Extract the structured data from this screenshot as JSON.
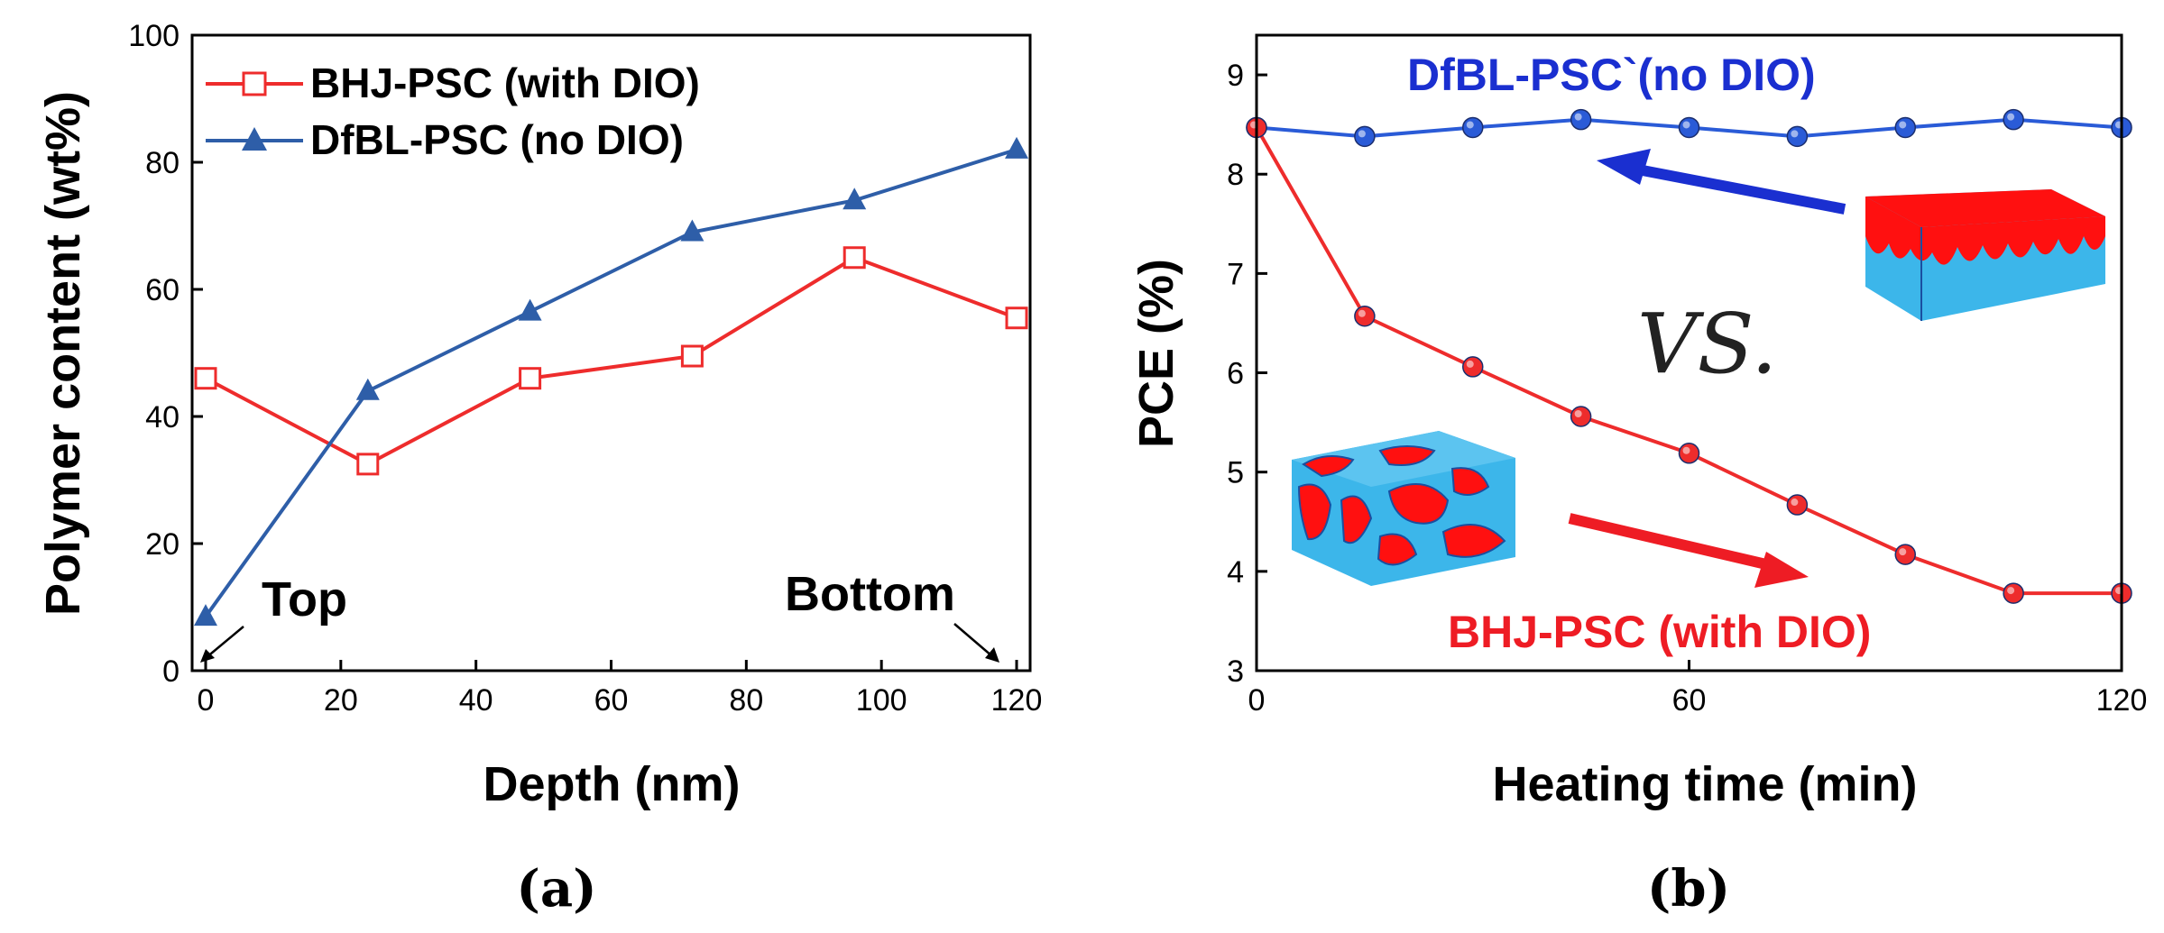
{
  "colors": {
    "red": "#ee2c2c",
    "steelblue": "#2e5ea8",
    "royalblue": "#2a5bd7",
    "label_blue": "#1a2fd0",
    "label_red": "#ee1c24",
    "cyan": "#3cb6ea",
    "block_red": "#ff1010"
  },
  "chart_data": [
    {
      "type": "line",
      "panel_label": "(a)",
      "title": "",
      "xlabel": "Depth (nm)",
      "ylabel": "Polymer content (wt%)",
      "xlim": [
        -2,
        122
      ],
      "ylim": [
        0,
        100
      ],
      "xticks": [
        0,
        20,
        40,
        60,
        80,
        100,
        120
      ],
      "yticks": [
        0,
        20,
        40,
        60,
        80,
        100
      ],
      "legend": [
        "BHJ-PSC (with DIO)",
        "DfBL-PSC (no DIO)"
      ],
      "annotations": {
        "top": "Top",
        "bottom": "Bottom"
      },
      "series": [
        {
          "name": "BHJ-PSC (with DIO)",
          "color": "#ee2c2c",
          "marker": "open-square",
          "x": [
            0,
            24,
            48,
            72,
            96,
            120
          ],
          "y": [
            46,
            32.5,
            46,
            49.5,
            65,
            55.5
          ]
        },
        {
          "name": "DfBL-PSC (no DIO)",
          "color": "#2e5ea8",
          "marker": "filled-triangle",
          "x": [
            0,
            24,
            48,
            72,
            96,
            120
          ],
          "y": [
            8.5,
            44,
            56.5,
            69,
            74,
            82
          ]
        }
      ]
    },
    {
      "type": "line",
      "panel_label": "(b)",
      "title": "",
      "xlabel": "Heating time (min)",
      "ylabel": "PCE (%)",
      "xlim": [
        0,
        120
      ],
      "ylim": [
        3,
        9.4
      ],
      "xticks": [
        0,
        60,
        120
      ],
      "yticks": [
        3,
        4,
        5,
        6,
        7,
        8,
        9
      ],
      "center_text": "VS.",
      "series": [
        {
          "name": "DfBL-PSC`(no DIO)",
          "color": "#2a5bd7",
          "marker": "filled-circle",
          "x": [
            0,
            15,
            30,
            45,
            60,
            75,
            90,
            105,
            120
          ],
          "y": [
            8.47,
            8.38,
            8.47,
            8.55,
            8.47,
            8.38,
            8.47,
            8.55,
            8.47
          ]
        },
        {
          "name": "BHJ-PSC (with DIO)",
          "color": "#ee2c2c",
          "marker": "filled-circle",
          "x": [
            0,
            15,
            30,
            45,
            60,
            75,
            90,
            105,
            120
          ],
          "y": [
            8.47,
            6.57,
            6.06,
            5.56,
            5.19,
            4.67,
            4.17,
            3.78,
            3.78
          ]
        }
      ]
    }
  ]
}
